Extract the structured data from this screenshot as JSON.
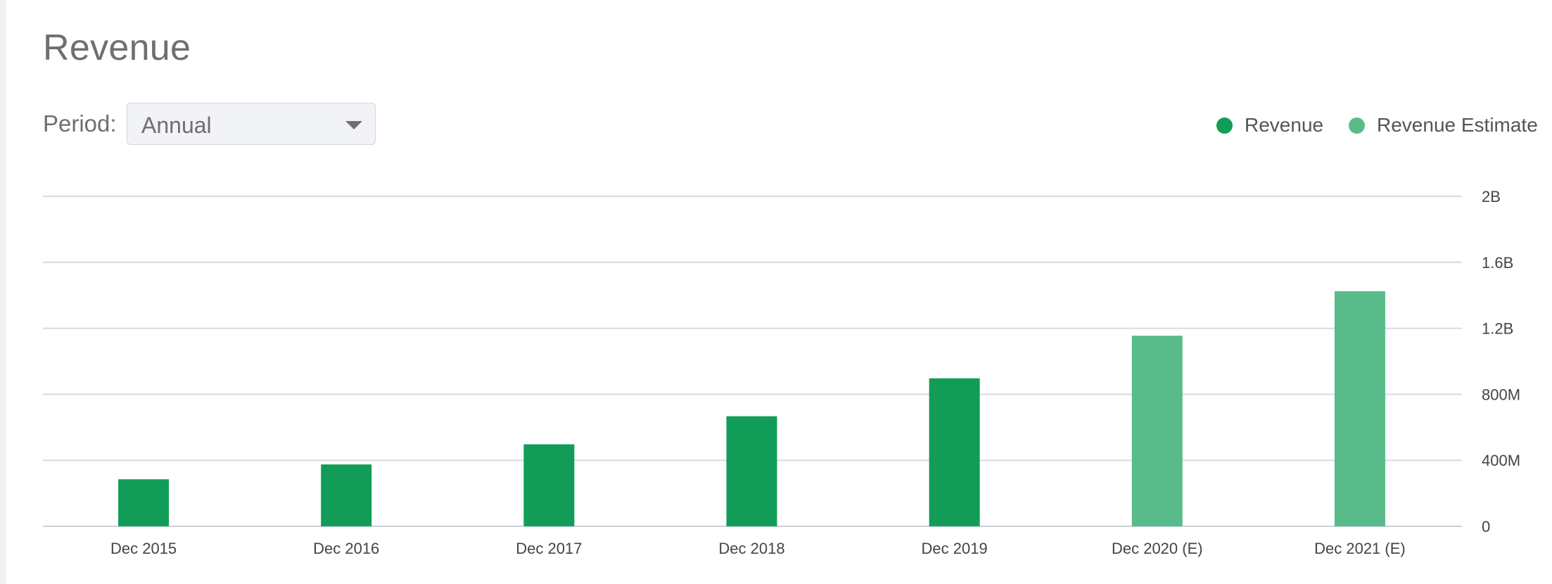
{
  "title": "Revenue",
  "period": {
    "label": "Period:",
    "selected": "Annual"
  },
  "legend": {
    "revenue": "Revenue",
    "estimate": "Revenue Estimate"
  },
  "colors": {
    "revenue": "#119d57",
    "estimate": "#58bb89",
    "grid": "#d7dbe0",
    "text": "#6f6f6f"
  },
  "chart_data": {
    "type": "bar",
    "categories": [
      "Dec 2015",
      "Dec 2016",
      "Dec 2017",
      "Dec 2018",
      "Dec 2019",
      "Dec 2020 (E)",
      "Dec 2021 (E)"
    ],
    "series": [
      {
        "name": "Revenue",
        "values": [
          285000000,
          375000000,
          497000000,
          667000000,
          897000000,
          null,
          null
        ]
      },
      {
        "name": "Revenue Estimate",
        "values": [
          null,
          null,
          null,
          null,
          null,
          1155000000,
          1425000000
        ]
      }
    ],
    "yticks": [
      {
        "value": 0,
        "label": "0"
      },
      {
        "value": 400000000,
        "label": "400M"
      },
      {
        "value": 800000000,
        "label": "800M"
      },
      {
        "value": 1200000000,
        "label": "1.2B"
      },
      {
        "value": 1600000000,
        "label": "1.6B"
      },
      {
        "value": 2000000000,
        "label": "2B"
      }
    ],
    "ylim": [
      0,
      2000000000
    ],
    "axis_position": "right",
    "grid": true,
    "legend_position": "top-right"
  }
}
